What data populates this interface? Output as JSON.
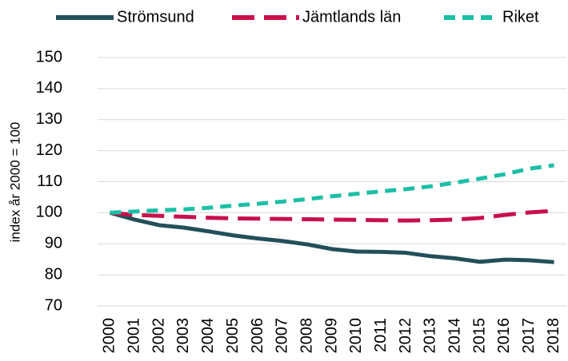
{
  "chart_data": {
    "type": "line",
    "y_label": "index år 2000 = 100",
    "x": [
      "2000",
      "2001",
      "2002",
      "2003",
      "2004",
      "2005",
      "2006",
      "2007",
      "2008",
      "2009",
      "2010",
      "2011",
      "2012",
      "2013",
      "2014",
      "2015",
      "2016",
      "2017",
      "2018"
    ],
    "series": [
      {
        "name": "Strömsund",
        "color": "#234f5a",
        "dash": "solid",
        "values": [
          100,
          97.8,
          96,
          95.2,
          94,
          92.7,
          91.7,
          90.9,
          89.8,
          88.3,
          87.5,
          87.4,
          87.1,
          86,
          85.3,
          84.2,
          84.9,
          84.7,
          84.1
        ]
      },
      {
        "name": "Jämtlands län",
        "color": "#c8104b",
        "dash": "long",
        "values": [
          100,
          99.3,
          99,
          98.7,
          98.4,
          98.2,
          98.1,
          98,
          97.9,
          97.8,
          97.7,
          97.6,
          97.5,
          97.6,
          97.8,
          98.3,
          99.3,
          100.1,
          100.6
        ]
      },
      {
        "name": "Riket",
        "color": "#1bbfa6",
        "dash": "short",
        "values": [
          100,
          100.4,
          100.8,
          101.1,
          101.6,
          102.3,
          102.9,
          103.6,
          104.4,
          105.3,
          106.1,
          106.9,
          107.6,
          108.5,
          109.7,
          111,
          112.4,
          114.2,
          115.3
        ]
      }
    ],
    "ylim": [
      70,
      150
    ],
    "yticks": [
      70,
      80,
      90,
      100,
      110,
      120,
      130,
      140,
      150
    ],
    "grid": true,
    "legend": "top"
  }
}
